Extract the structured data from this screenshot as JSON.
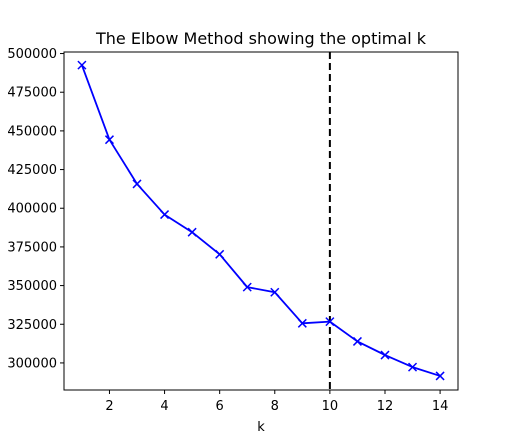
{
  "chart_data": {
    "type": "line",
    "title": "The Elbow Method showing the optimal k",
    "xlabel": "k",
    "ylabel": "",
    "x": [
      1,
      2,
      3,
      4,
      5,
      6,
      7,
      8,
      9,
      10,
      11,
      12,
      13,
      14
    ],
    "series": [
      {
        "values": [
          492500,
          444300,
          415700,
          395900,
          384500,
          370200,
          349000,
          345700,
          325600,
          326700,
          313900,
          305100,
          297300,
          291600
        ],
        "color": "#0000ff",
        "marker": "x"
      }
    ],
    "xlim": [
      0.35,
      14.65
    ],
    "ylim": [
      282500,
      501000
    ],
    "xticks": [
      2,
      4,
      6,
      8,
      10,
      12,
      14
    ],
    "xtick_labels": [
      "2",
      "4",
      "6",
      "8",
      "10",
      "12",
      "14"
    ],
    "yticks": [
      300000,
      325000,
      350000,
      375000,
      400000,
      425000,
      450000,
      475000,
      500000
    ],
    "ytick_labels": [
      "300000",
      "325000",
      "350000",
      "375000",
      "400000",
      "425000",
      "450000",
      "475000",
      "500000"
    ],
    "vline": {
      "x": 10,
      "color": "#000000",
      "style": "dashed"
    },
    "grid": false,
    "legend": "none"
  }
}
